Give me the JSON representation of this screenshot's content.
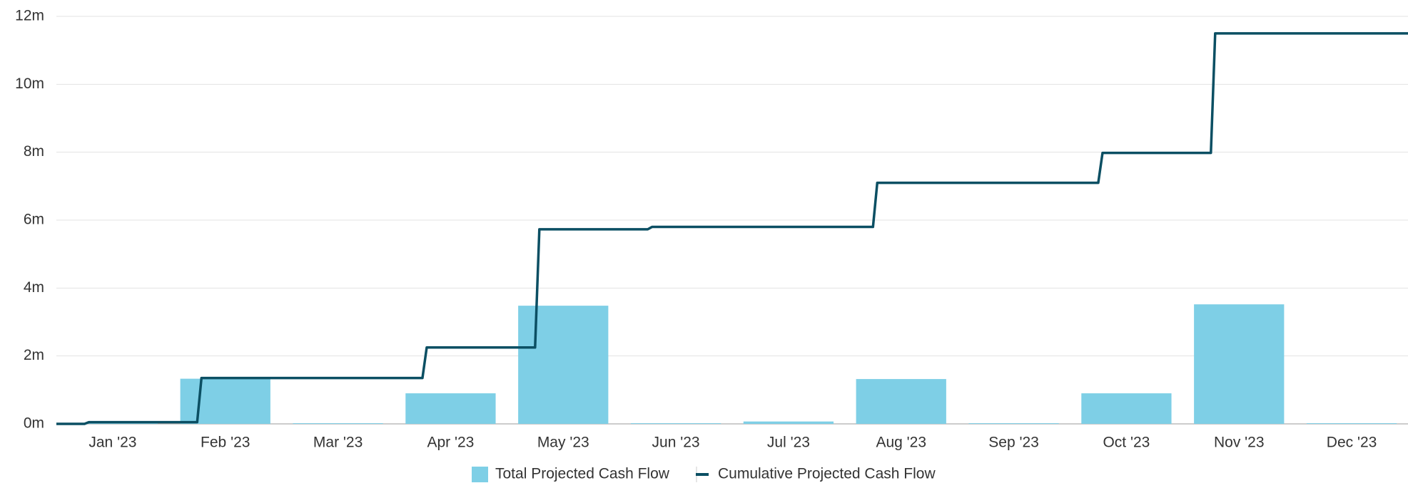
{
  "chart_data": {
    "type": "bar-line",
    "categories": [
      "Jan '23",
      "Feb '23",
      "Mar '23",
      "Apr '23",
      "May '23",
      "Jun '23",
      "Jul '23",
      "Aug '23",
      "Sep '23",
      "Oct '23",
      "Nov '23",
      "Dec '23"
    ],
    "series": [
      {
        "name": "Total Projected Cash Flow",
        "type": "bar",
        "color": "#7ecfe6",
        "values": [
          0.02,
          1.33,
          0.02,
          0.9,
          3.48,
          0.02,
          0.07,
          1.32,
          0.02,
          0.9,
          3.52,
          0.02
        ]
      },
      {
        "name": "Cumulative Projected Cash Flow",
        "type": "line",
        "color": "#0b4f63",
        "values": [
          0.05,
          1.35,
          1.35,
          2.25,
          5.73,
          5.8,
          5.8,
          7.1,
          7.1,
          7.98,
          11.5,
          11.5
        ]
      }
    ],
    "ylim": [
      0,
      12
    ],
    "yticks": [
      {
        "value": 0,
        "label": "0m"
      },
      {
        "value": 2,
        "label": "2m"
      },
      {
        "value": 4,
        "label": "4m"
      },
      {
        "value": 6,
        "label": "6m"
      },
      {
        "value": 8,
        "label": "8m"
      },
      {
        "value": 10,
        "label": "10m"
      },
      {
        "value": 12,
        "label": "12m"
      }
    ],
    "grid": true
  }
}
